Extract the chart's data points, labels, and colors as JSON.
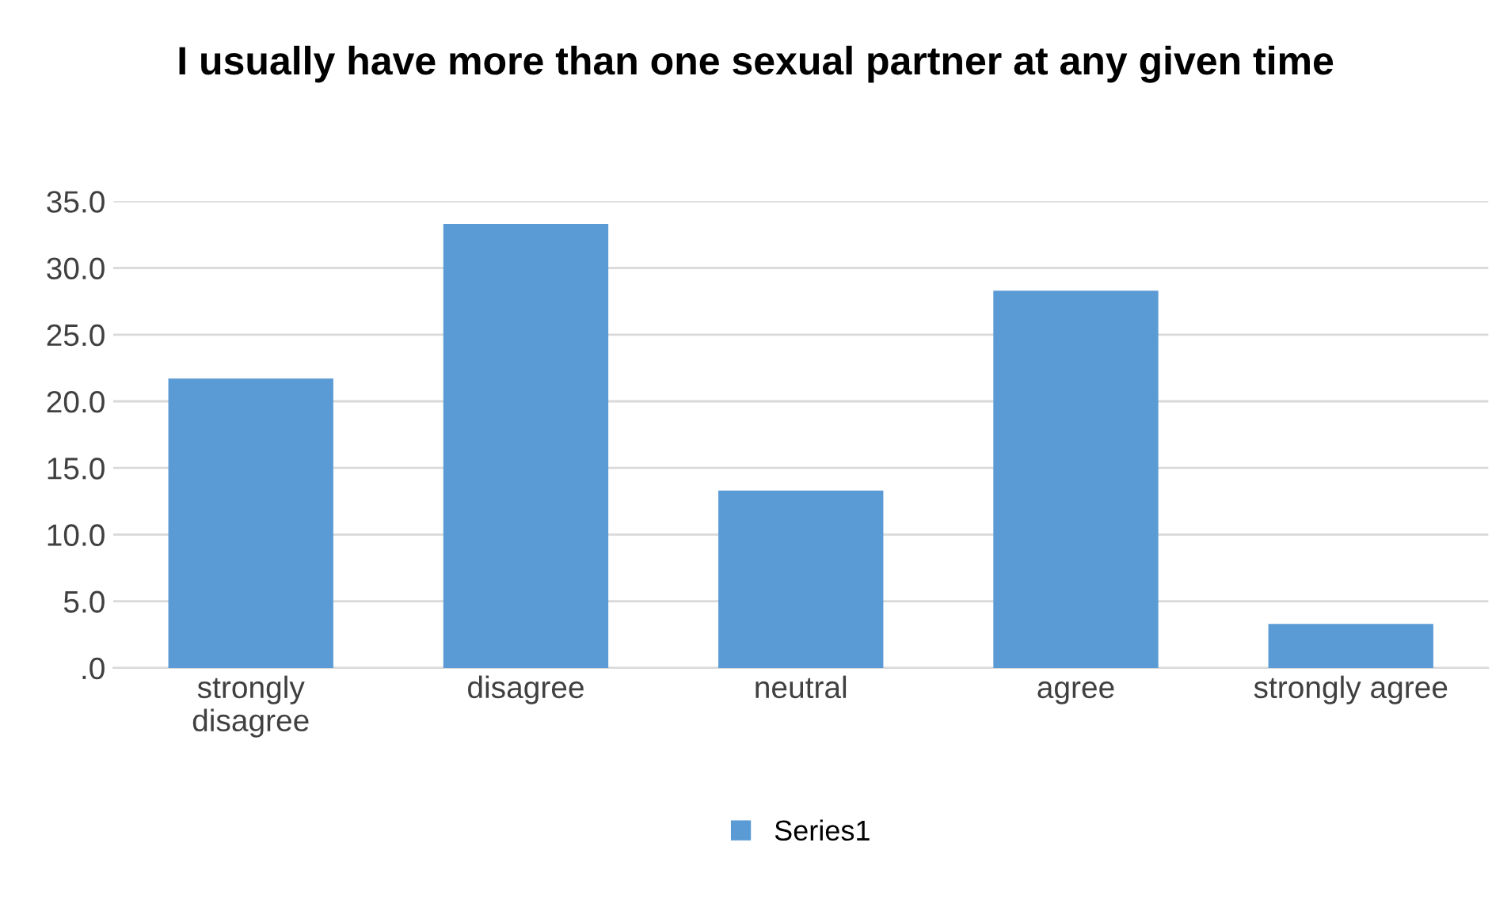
{
  "chart_data": {
    "type": "bar",
    "title": "I usually have more than one sexual partner at any given time",
    "categories": [
      "strongly\ndisagree",
      "disagree",
      "neutral",
      "agree",
      "strongly agree"
    ],
    "series": [
      {
        "name": "Series1",
        "color": "#5b9bd5",
        "values": [
          21.7,
          33.3,
          13.3,
          28.3,
          3.3
        ]
      }
    ],
    "ylim": [
      0,
      35
    ],
    "yticks": [
      {
        "value": 0,
        "label": ".0"
      },
      {
        "value": 5,
        "label": "5.0"
      },
      {
        "value": 10,
        "label": "10.0"
      },
      {
        "value": 15,
        "label": "15.0"
      },
      {
        "value": 20,
        "label": "20.0"
      },
      {
        "value": 25,
        "label": "25.0"
      },
      {
        "value": 30,
        "label": "30.0"
      },
      {
        "value": 35,
        "label": "35.0"
      }
    ],
    "grid": "y",
    "legend": "bottom"
  }
}
